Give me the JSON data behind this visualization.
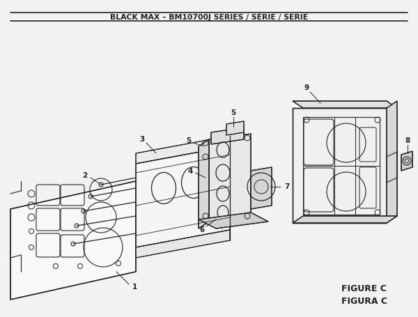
{
  "title": "BLACK MAX – BM10700J SERIES / SÉRIE / SERIE",
  "figure_label": "FIGURE C",
  "figura_label": "FIGURA C",
  "bg_color": "#f0f0f0",
  "line_color": "#222222"
}
